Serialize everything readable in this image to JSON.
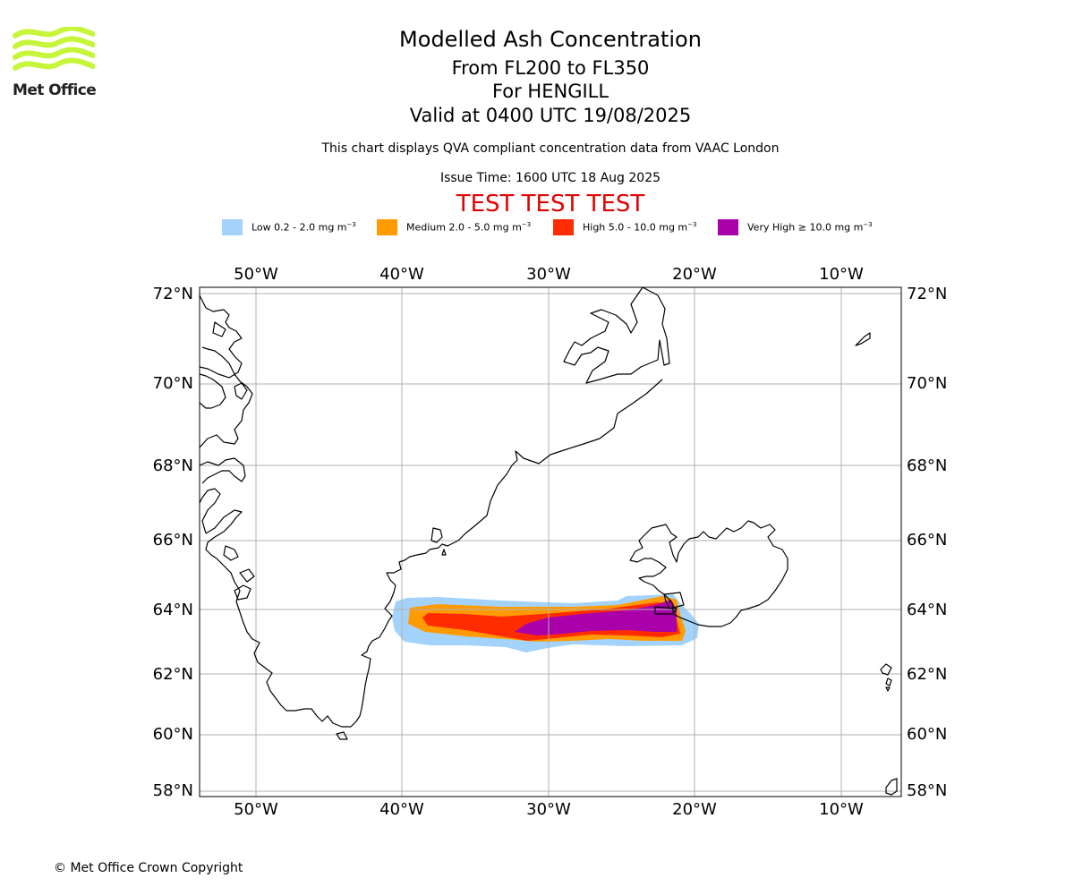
{
  "header": {
    "logo_text": "Met Office",
    "title": "Modelled Ash Concentration",
    "level_range": "From FL200 to FL350",
    "volcano": "For HENGILL",
    "valid_time": "Valid at 0400 UTC 19/08/2025",
    "note": "This chart displays QVA compliant concentration data from VAAC London",
    "issue_time": "Issue Time: 1600 UTC 18 Aug 2025",
    "test_banner": "TEST TEST TEST"
  },
  "legend": [
    {
      "label": "Low 0.2 - 2.0 mg m",
      "sup": "−3",
      "color": "#a3d3fb"
    },
    {
      "label": "Medium 2.0 - 5.0 mg m",
      "sup": "−3",
      "color": "#ff9b00"
    },
    {
      "label": "High 5.0 - 10.0 mg m",
      "sup": "−3",
      "color": "#ff2c00"
    },
    {
      "label": "Very High  ≥  10.0 mg m",
      "sup": "−3",
      "color": "#aa00aa"
    }
  ],
  "map": {
    "lon_labels": [
      "50°W",
      "40°W",
      "30°W",
      "20°W",
      "10°W"
    ],
    "lat_labels": [
      "72°N",
      "70°N",
      "68°N",
      "66°N",
      "64°N",
      "62°N",
      "60°N",
      "58°N"
    ],
    "grid": true,
    "ash_levels": [
      "Low",
      "Medium",
      "High",
      "Very High"
    ]
  },
  "footer": {
    "copyright": "© Met Office Crown Copyright"
  }
}
